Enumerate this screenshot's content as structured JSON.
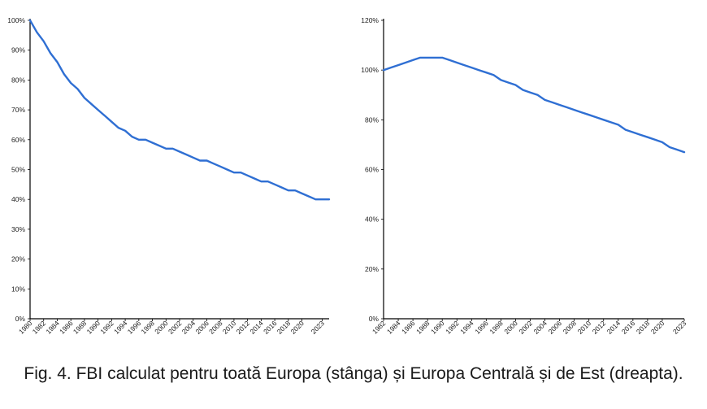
{
  "caption": "Fig. 4. FBI calculat pentru toată Europa (stânga) și Europa Centrală și de Est (dreapta).",
  "colors": {
    "line": "#2f6fd3",
    "axis": "#000000",
    "text": "#222222"
  },
  "chart_data": [
    {
      "type": "line",
      "title": "",
      "xlabel": "",
      "ylabel": "",
      "ylim": [
        0,
        100
      ],
      "yticks": [
        "0%",
        "10%",
        "20%",
        "30%",
        "40%",
        "50%",
        "60%",
        "70%",
        "80%",
        "90%",
        "100%"
      ],
      "ytick_values": [
        0,
        10,
        20,
        30,
        40,
        50,
        60,
        70,
        80,
        90,
        100
      ],
      "xlim": [
        1980,
        2024
      ],
      "xticks": [
        "1980",
        "1982",
        "1984",
        "1986",
        "1988",
        "1990",
        "1992",
        "1994",
        "1996",
        "1998",
        "2000",
        "2002",
        "2004",
        "2006",
        "2008",
        "2010",
        "2012",
        "2014",
        "2016",
        "2018",
        "2020",
        "2023"
      ],
      "xtick_values": [
        1980,
        1982,
        1984,
        1986,
        1988,
        1990,
        1992,
        1994,
        1996,
        1998,
        2000,
        2002,
        2004,
        2006,
        2008,
        2010,
        2012,
        2014,
        2016,
        2018,
        2020,
        2023
      ],
      "grid": false,
      "series": [
        {
          "x": [
            1980,
            1981,
            1982,
            1983,
            1984,
            1985,
            1986,
            1987,
            1988,
            1989,
            1990,
            1991,
            1992,
            1993,
            1994,
            1995,
            1996,
            1997,
            1998,
            1999,
            2000,
            2001,
            2002,
            2003,
            2004,
            2005,
            2006,
            2007,
            2008,
            2009,
            2010,
            2011,
            2012,
            2013,
            2014,
            2015,
            2016,
            2017,
            2018,
            2019,
            2020,
            2021,
            2022,
            2023,
            2024
          ],
          "values": [
            100,
            96,
            93,
            89,
            86,
            82,
            79,
            77,
            74,
            72,
            70,
            68,
            66,
            64,
            63,
            61,
            60,
            60,
            59,
            58,
            57,
            57,
            56,
            55,
            54,
            53,
            53,
            52,
            51,
            50,
            49,
            49,
            48,
            47,
            46,
            46,
            45,
            44,
            43,
            43,
            42,
            41,
            40,
            40,
            40
          ]
        }
      ]
    },
    {
      "type": "line",
      "title": "",
      "xlabel": "",
      "ylabel": "",
      "ylim": [
        0,
        120
      ],
      "yticks": [
        "0%",
        "20%",
        "40%",
        "60%",
        "80%",
        "100%",
        "120%"
      ],
      "ytick_values": [
        0,
        20,
        40,
        60,
        80,
        100,
        120
      ],
      "xlim": [
        1982,
        2023
      ],
      "xticks": [
        "1982",
        "1984",
        "1986",
        "1988",
        "1990",
        "1992",
        "1994",
        "1996",
        "1998",
        "2000",
        "2002",
        "2004",
        "2006",
        "2008",
        "2010",
        "2012",
        "2014",
        "2016",
        "2018",
        "2020",
        "2023"
      ],
      "xtick_values": [
        1982,
        1984,
        1986,
        1988,
        1990,
        1992,
        1994,
        1996,
        1998,
        2000,
        2002,
        2004,
        2006,
        2008,
        2010,
        2012,
        2014,
        2016,
        2018,
        2020,
        2023
      ],
      "grid": false,
      "series": [
        {
          "x": [
            1982,
            1983,
            1984,
            1985,
            1986,
            1987,
            1988,
            1989,
            1990,
            1991,
            1992,
            1993,
            1994,
            1995,
            1996,
            1997,
            1998,
            1999,
            2000,
            2001,
            2002,
            2003,
            2004,
            2005,
            2006,
            2007,
            2008,
            2009,
            2010,
            2011,
            2012,
            2013,
            2014,
            2015,
            2016,
            2017,
            2018,
            2019,
            2020,
            2021,
            2022,
            2023
          ],
          "values": [
            100,
            101,
            102,
            103,
            104,
            105,
            105,
            105,
            105,
            104,
            103,
            102,
            101,
            100,
            99,
            98,
            96,
            95,
            94,
            92,
            91,
            90,
            88,
            87,
            86,
            85,
            84,
            83,
            82,
            81,
            80,
            79,
            78,
            76,
            75,
            74,
            73,
            72,
            71,
            69,
            68,
            67
          ]
        }
      ]
    }
  ]
}
